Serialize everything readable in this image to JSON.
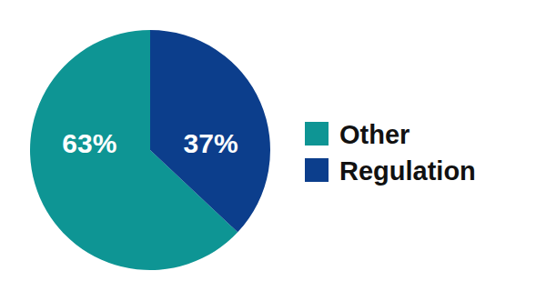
{
  "chart_data": {
    "type": "pie",
    "categories": [
      "Other",
      "Regulation"
    ],
    "values": [
      63,
      37
    ],
    "value_labels": [
      "63%",
      "37%"
    ],
    "colors": [
      "#0e9594",
      "#0c3e8c"
    ],
    "data_labels": true
  }
}
